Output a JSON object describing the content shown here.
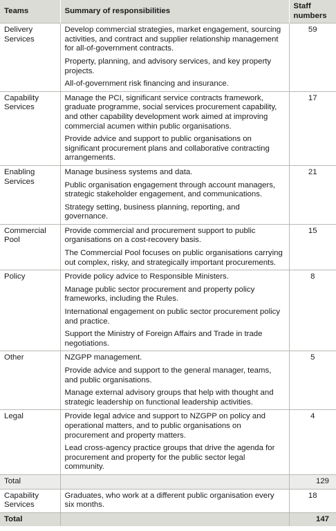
{
  "headers": {
    "teams": "Teams",
    "summary": "Summary of responsibilities",
    "staff": "Staff numbers"
  },
  "rows": [
    {
      "team": "Delivery Services",
      "paras": [
        "Develop commercial strategies, market engagement, sourcing activities, and contract and supplier relationship management for all-of-government contracts.",
        "Property, planning, and advisory services, and key property projects.",
        "All-of-government risk financing and insurance."
      ],
      "staff": "59"
    },
    {
      "team": "Capability Services",
      "paras": [
        "Manage the PCI, significant service contracts framework, graduate programme, social services procurement capability, and other capability development work aimed at improving commercial acumen within public organisations.",
        "Provide advice and support to public organisations on significant procurement plans and collaborative contracting arrangements."
      ],
      "staff": "17"
    },
    {
      "team": "Enabling Services",
      "paras": [
        "Manage business systems and data.",
        "Public organisation engagement through account managers, strategic stakeholder engagement, and communications.",
        "Strategy setting, business planning, reporting, and governance."
      ],
      "staff": "21"
    },
    {
      "team": "Commercial Pool",
      "paras": [
        "Provide commercial and procurement support to public organisations on a cost-recovery basis.",
        "The Commercial Pool focuses on public organisations carrying out complex, risky, and strategically important procurements."
      ],
      "staff": "15"
    },
    {
      "team": "Policy",
      "paras": [
        "Provide policy advice to Responsible Ministers.",
        "Manage public sector procurement and property policy frameworks, including the Rules.",
        "International engagement on public sector procurement policy and practice.",
        "Support the Ministry of Foreign Affairs and Trade in trade negotiations."
      ],
      "staff": "8"
    },
    {
      "team": "Other",
      "paras": [
        "NZGPP management.",
        "Provide advice and support to the general manager, teams, and public organisations.",
        "Manage external advisory groups that help with thought and strategic leadership on functional leadership activities."
      ],
      "staff": "5"
    },
    {
      "team": "Legal",
      "paras": [
        "Provide legal advice and support to NZGPP on policy and operational matters, and to public organisations on procurement and property matters.",
        "Lead cross-agency practice groups that drive the agenda for procurement and property for the public sector legal community."
      ],
      "staff": "4"
    }
  ],
  "subtotal": {
    "label": "Total",
    "staff": "129"
  },
  "extra": {
    "team": "Capability Services",
    "paras": [
      "Graduates, who work at a different public organisation every six months."
    ],
    "staff": "18"
  },
  "total": {
    "label": "Total",
    "staff": "147"
  }
}
